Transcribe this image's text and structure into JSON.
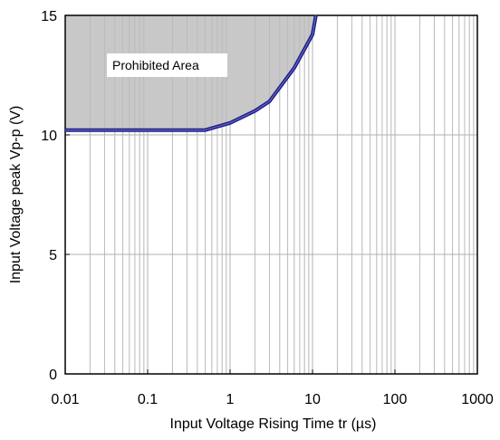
{
  "chart_data": {
    "type": "line",
    "title": "",
    "xlabel": "Input Voltage Rising Time tr (µs)",
    "ylabel": "Input Voltage peak Vp-p (V)",
    "x_scale": "log",
    "xlim": [
      0.01,
      1000
    ],
    "ylim": [
      0,
      15
    ],
    "x_ticks": [
      0.01,
      0.1,
      1,
      10,
      100,
      1000
    ],
    "x_tick_labels": [
      "0.01",
      "0.1",
      "1",
      "10",
      "100",
      "1000"
    ],
    "y_ticks": [
      0,
      5,
      10,
      15
    ],
    "y_tick_labels": [
      "0",
      "5",
      "10",
      "15"
    ],
    "grid": true,
    "series": [
      {
        "x": [
          0.01,
          0.5,
          1,
          2,
          3,
          6,
          10,
          11
        ],
        "y": [
          10.2,
          10.2,
          10.5,
          11.0,
          11.4,
          12.8,
          14.2,
          15.0
        ],
        "color": "#1a1a8c"
      }
    ],
    "shaded_region": {
      "label": "Prohibited Area",
      "color": "#c8c8c8",
      "position": "above curve"
    },
    "annotations": [
      "Prohibited Area"
    ]
  }
}
